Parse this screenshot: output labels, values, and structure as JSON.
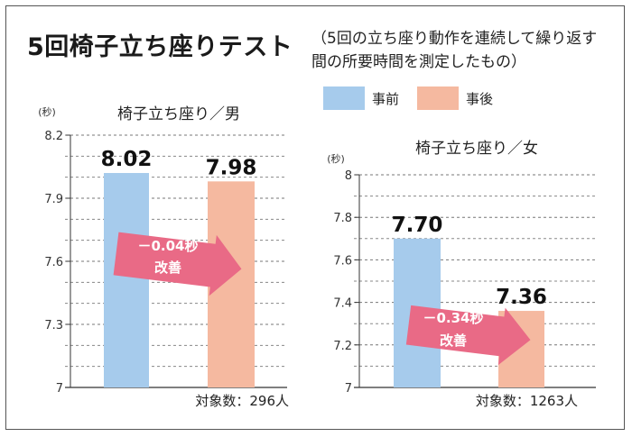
{
  "title": "5回椅子立ち座りテスト",
  "subtitle": "（5回の立ち座り動作を連続して繰り返す間の所要時間を測定したもの）",
  "legend": [
    {
      "label": "事前",
      "color": "#a6cbec"
    },
    {
      "label": "事後",
      "color": "#f5b9a0"
    }
  ],
  "colors": {
    "arrow": "#e96a86",
    "before": "#a6cbec",
    "after": "#f5b9a0"
  },
  "chart_data": [
    {
      "type": "bar",
      "title": "椅子立ち座り／男",
      "ylabel": "(秒)",
      "ylim": [
        7,
        8.2
      ],
      "yticks": [
        "7",
        "7.3",
        "7.6",
        "7.9",
        "8.2"
      ],
      "categories": [
        "事前",
        "事後"
      ],
      "values": [
        8.02,
        7.98
      ],
      "value_labels": [
        "8.02",
        "7.98"
      ],
      "annotation": {
        "line1": "－0.04秒",
        "line2": "改善"
      },
      "note": "対象数：296人"
    },
    {
      "type": "bar",
      "title": "椅子立ち座り／女",
      "ylabel": "(秒)",
      "ylim": [
        7,
        8
      ],
      "yticks": [
        "7",
        "7.2",
        "7.4",
        "7.6",
        "7.8",
        "8"
      ],
      "categories": [
        "事前",
        "事後"
      ],
      "values": [
        7.7,
        7.36
      ],
      "value_labels": [
        "7.70",
        "7.36"
      ],
      "annotation": {
        "line1": "－0.34秒",
        "line2": "改善"
      },
      "note": "対象数：1263人"
    }
  ]
}
